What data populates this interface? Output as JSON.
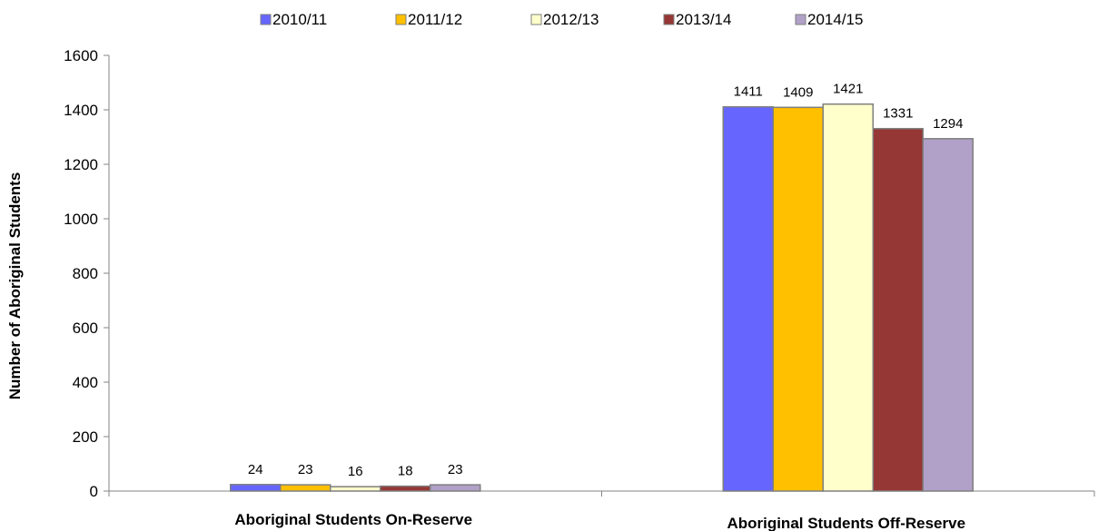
{
  "chart_data": {
    "type": "bar",
    "title": "",
    "xlabel": "",
    "ylabel": "Number of Aboriginal Students",
    "ylim": [
      0,
      1600
    ],
    "yticks": [
      0,
      200,
      400,
      600,
      800,
      1000,
      1200,
      1400,
      1600
    ],
    "grid": false,
    "legend_position": "top",
    "categories": [
      "Aboriginal Students On-Reserve",
      "Aboriginal Students Off-Reserve"
    ],
    "series": [
      {
        "name": "2010/11",
        "color": "#6666ff",
        "values": [
          24,
          1411
        ]
      },
      {
        "name": "2011/12",
        "color": "#ffc000",
        "values": [
          23,
          1409
        ]
      },
      {
        "name": "2012/13",
        "color": "#ffffcc",
        "values": [
          16,
          1421
        ]
      },
      {
        "name": "2013/14",
        "color": "#953735",
        "values": [
          18,
          1331
        ]
      },
      {
        "name": "2014/15",
        "color": "#b1a0c7",
        "values": [
          23,
          1294
        ]
      }
    ]
  }
}
